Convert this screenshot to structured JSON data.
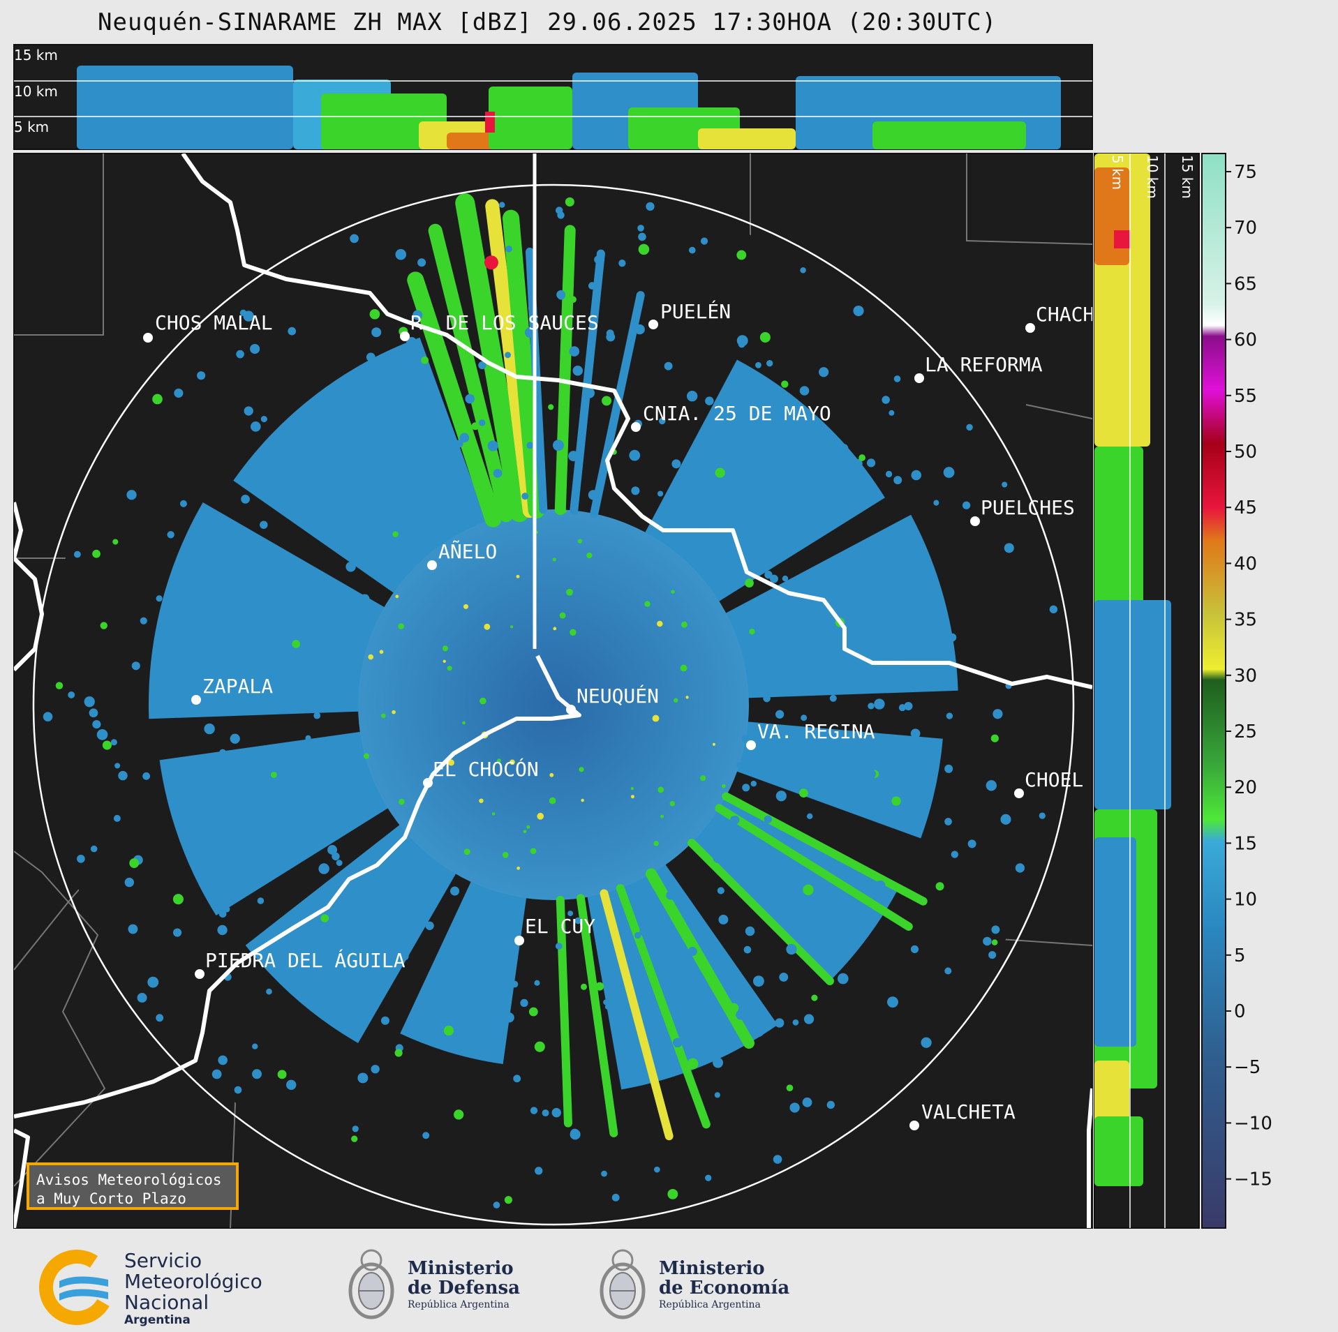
{
  "title": "Neuquén-SINARAME ZH MAX [dBZ] 29.06.2025 17:30HOA (20:30UTC)",
  "top_profile": {
    "altitude_labels": [
      "15 km",
      "10 km",
      "5 km"
    ]
  },
  "side_profile": {
    "altitude_labels": [
      "5 km",
      "10 km",
      "15 km"
    ]
  },
  "colorbar": {
    "ticks": [
      "75",
      "70",
      "65",
      "60",
      "55",
      "50",
      "45",
      "40",
      "35",
      "30",
      "25",
      "20",
      "15",
      "10",
      "5",
      "0",
      "−5",
      "−10",
      "−15"
    ]
  },
  "cities": [
    {
      "name": "CHOS MALAL"
    },
    {
      "name": "R. DE LOS SAUCES"
    },
    {
      "name": "PUELÉN"
    },
    {
      "name": "CHACH"
    },
    {
      "name": "LA REFORMA"
    },
    {
      "name": "CNIA. 25 DE MAYO"
    },
    {
      "name": "PUELCHES"
    },
    {
      "name": "AÑELO"
    },
    {
      "name": "ZAPALA"
    },
    {
      "name": "NEUQUÉN"
    },
    {
      "name": "VA. REGINA"
    },
    {
      "name": "EL CHOCÓN"
    },
    {
      "name": "CHOEL"
    },
    {
      "name": "EL CUY"
    },
    {
      "name": "PIEDRA DEL ÁGUILA"
    },
    {
      "name": "VALCHETA"
    }
  ],
  "avisos": {
    "line1": "Avisos Meteorológicos",
    "line2": "a Muy Corto Plazo"
  },
  "logos": {
    "smn": {
      "line1": "Servicio",
      "line2": "Meteorológico",
      "line3": "Nacional",
      "line4": "Argentina"
    },
    "defensa": {
      "line1": "Ministerio",
      "line2": "de Defensa",
      "line3": "República Argentina"
    },
    "economia": {
      "line1": "Ministerio",
      "line2": "de Economía",
      "line3": "República Argentina"
    }
  },
  "colors": {
    "background_panel": "#1c1c1c",
    "radar_base": "#2b8ec8",
    "light_rain": "#3bd42a",
    "moderate": "#e6e23a",
    "heavy": "#e8163c",
    "accent_border": "#f5a800"
  }
}
